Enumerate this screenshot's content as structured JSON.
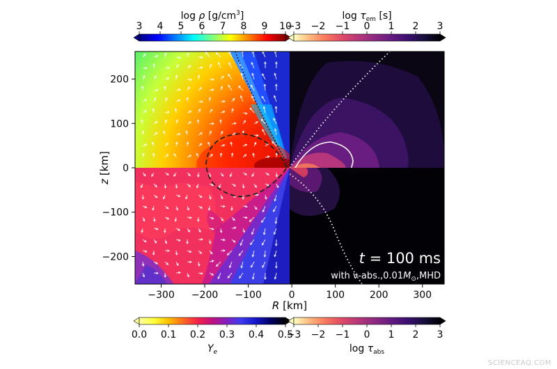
{
  "chart_data": {
    "type": "heatmap",
    "panels": [
      {
        "name": "density",
        "quadrant": "upper-left",
        "colormap": "jet"
      },
      {
        "name": "electron-fraction",
        "quadrant": "lower-left",
        "colormap": "gnuplot2-reversed"
      },
      {
        "name": "emission-timescale",
        "quadrant": "upper-right",
        "colormap": "magma-reversed"
      },
      {
        "name": "absorption-timescale",
        "quadrant": "lower-right",
        "colormap": "magma-reversed"
      }
    ],
    "xlabel_pre": "R",
    "xlabel_post": " [km]",
    "ylabel_pre": "z",
    "ylabel_post": " [km]",
    "xlim": [
      -360,
      350
    ],
    "ylim": [
      -262,
      262
    ],
    "xticks": [
      -300,
      -200,
      -100,
      0,
      100,
      200,
      300
    ],
    "yticks": [
      -200,
      -100,
      0,
      100,
      200
    ],
    "xticklabels": [
      "−300",
      "−200",
      "−100",
      "0",
      "100",
      "200",
      "300"
    ],
    "yticklabels": [
      "−200",
      "−100",
      "0",
      "100",
      "200"
    ],
    "colorbars": [
      {
        "id": "rho",
        "position": "top-left",
        "title_pre": "log ",
        "title_sym": "ρ",
        "title_post": " [g/cm",
        "title_sup": "3",
        "title_end": "]",
        "ticks": [
          "3",
          "4",
          "5",
          "6",
          "7",
          "8",
          "9",
          "10"
        ],
        "range": [
          3,
          10
        ]
      },
      {
        "id": "tau-em",
        "position": "top-right",
        "title_pre": "log ",
        "title_sym": "τ",
        "title_sub": "em",
        "title_post": " [s]",
        "ticks": [
          "−3",
          "−2",
          "−1",
          "0",
          "1",
          "2",
          "3"
        ],
        "range": [
          -3,
          3
        ]
      },
      {
        "id": "ye",
        "position": "bottom-left",
        "title_sym": "Y",
        "title_sub": "e",
        "ticks": [
          "0.0",
          "0.1",
          "0.2",
          "0.3",
          "0.4",
          "0.5"
        ],
        "range": [
          0.0,
          0.5
        ]
      },
      {
        "id": "tau-abs",
        "position": "bottom-right",
        "title_pre": "log ",
        "title_sym": "τ",
        "title_sub": "abs",
        "ticks": [
          "−3",
          "−2",
          "−1",
          "0",
          "1",
          "2",
          "3"
        ],
        "range": [
          -3,
          3
        ]
      }
    ],
    "annotations": {
      "time_pre": "t",
      "time_post": " = 100 ms",
      "run_pre": "with ν-abs.,0.01",
      "run_sym": "M",
      "run_sub": "⊙",
      "run_post": ",MHD"
    }
  },
  "watermark": "SCIENCEAQ.COM",
  "colors": {
    "jet": [
      "#00007f",
      "#0000ff",
      "#007fff",
      "#00ffff",
      "#7fff7f",
      "#ffff00",
      "#ff7f00",
      "#ff0000",
      "#7f0000"
    ],
    "magma_r": [
      "#fcfdbf",
      "#fcb77d",
      "#f8765c",
      "#de4968",
      "#b5367a",
      "#8c2981",
      "#641a80",
      "#3b0f70",
      "#180f3d",
      "#000004"
    ],
    "gnuplot2_r": [
      "#ffffa0",
      "#ffff3c",
      "#ffc000",
      "#ff6a20",
      "#f4224a",
      "#c01080",
      "#8020c0",
      "#3a3af0",
      "#1414c8",
      "#000064",
      "#000000"
    ]
  }
}
